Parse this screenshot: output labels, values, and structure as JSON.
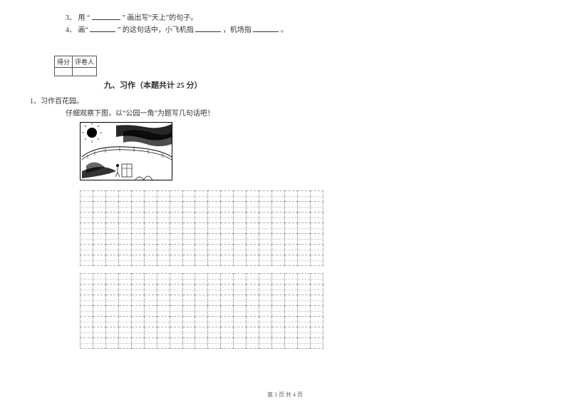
{
  "questions": {
    "q3": {
      "num": "3、",
      "pre": "用 “",
      "post": "” 画出写“天上”的句子。"
    },
    "q4": {
      "num": "4、",
      "pre": "画“",
      "mid1": "” 的这句话中，小飞机指",
      "mid2": "，机场指",
      "end": "。"
    }
  },
  "score": {
    "col1": "得分",
    "col2": "评卷人"
  },
  "section": {
    "title": "九、习作（本题共计 25 分）"
  },
  "writing": {
    "heading": "1、习作百花园。",
    "instruction": "仔细观察下图，以“公园一角”为题写几句话吧！"
  },
  "grid": {
    "cols": 19,
    "block1_rows": 7,
    "block2_rows": 7
  },
  "illustration": {
    "sun_color": "#000000",
    "line_color": "#000000"
  },
  "footer": {
    "text": "第 3 页 共 4 页"
  }
}
